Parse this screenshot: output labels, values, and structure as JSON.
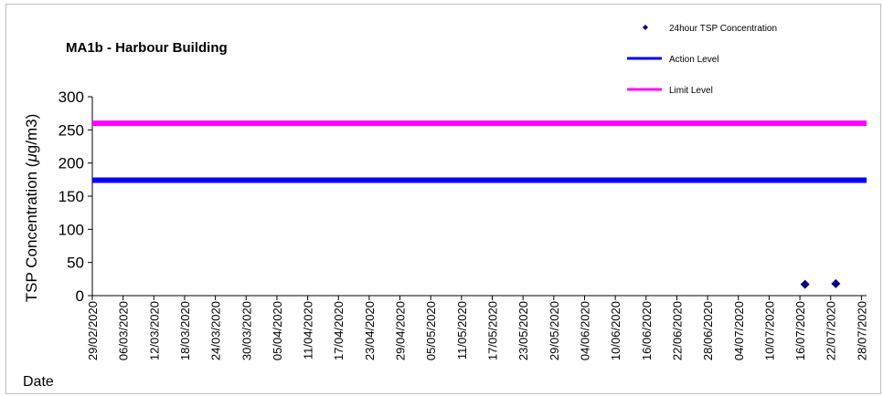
{
  "chart_data": {
    "type": "scatter",
    "title": "MA1b - Harbour Building",
    "xlabel": "Date",
    "ylabel": "TSP Concentration (μg/m3)",
    "ylabel_parts": {
      "before": "TSP Concentration (",
      "mu": "μ",
      "after": "g/m3)"
    },
    "ylim": [
      0,
      300
    ],
    "yticks": [
      0,
      50,
      100,
      150,
      200,
      250,
      300
    ],
    "xlim": [
      "29/02/2020",
      "29/07/2020"
    ],
    "xticks": [
      "29/02/2020",
      "06/03/2020",
      "12/03/2020",
      "18/03/2020",
      "24/03/2020",
      "30/03/2020",
      "05/04/2020",
      "11/04/2020",
      "17/04/2020",
      "23/04/2020",
      "29/04/2020",
      "05/05/2020",
      "11/05/2020",
      "17/05/2020",
      "23/05/2020",
      "29/05/2020",
      "04/06/2020",
      "10/06/2020",
      "16/06/2020",
      "22/06/2020",
      "28/06/2020",
      "04/07/2020",
      "10/07/2020",
      "16/07/2020",
      "22/07/2020",
      "28/07/2020"
    ],
    "grid": false,
    "legend_position": "top-right",
    "series": [
      {
        "name": "24hour TSP Concentration",
        "kind": "marker",
        "color": "#000080",
        "points": [
          {
            "x": "17/07/2020",
            "y": 17
          },
          {
            "x": "23/07/2020",
            "y": 18
          }
        ]
      },
      {
        "name": "Action Level",
        "kind": "hline",
        "color": "#0000ff",
        "y": 174
      },
      {
        "name": "Limit Level",
        "kind": "hline",
        "color": "#ff00ff",
        "y": 260
      }
    ]
  }
}
